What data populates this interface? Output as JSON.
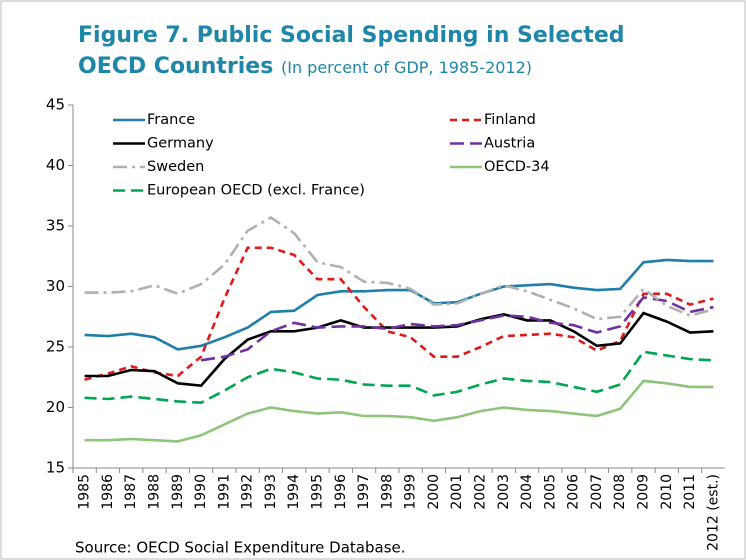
{
  "chart_data": {
    "type": "line",
    "title": "Figure 7. Public Social Spending in Selected OECD Countries",
    "subtitle": "(In percent of GDP, 1985-2012)",
    "source": "Source: OECD Social Expenditure Database.",
    "categories": [
      "1985",
      "1986",
      "1987",
      "1988",
      "1989",
      "1990",
      "1991",
      "1992",
      "1993",
      "1994",
      "1995",
      "1996",
      "1997",
      "1998",
      "1999",
      "2000",
      "2001",
      "2002",
      "2003",
      "2004",
      "2005",
      "2006",
      "2007",
      "2008",
      "2009",
      "2010",
      "2011",
      "2012 (est.)"
    ],
    "ylim": [
      15,
      45
    ],
    "yticks": [
      15,
      20,
      25,
      30,
      35,
      40,
      45
    ],
    "grid": false,
    "series": [
      {
        "name": "France",
        "color": "#1f7fa8",
        "dash": "none",
        "values": [
          26.0,
          25.9,
          26.1,
          25.8,
          24.8,
          25.1,
          25.8,
          26.6,
          27.9,
          28.0,
          29.3,
          29.6,
          29.6,
          29.7,
          29.7,
          28.6,
          28.7,
          29.4,
          30.0,
          30.1,
          30.2,
          29.9,
          29.7,
          29.8,
          32.0,
          32.2,
          32.1,
          32.1
        ]
      },
      {
        "name": "Finland",
        "color": "#e0191a",
        "dash": "7 5",
        "values": [
          22.3,
          22.8,
          23.4,
          22.9,
          22.6,
          24.2,
          29.0,
          33.2,
          33.2,
          32.6,
          30.6,
          30.6,
          28.3,
          26.3,
          25.8,
          24.2,
          24.2,
          25.0,
          25.9,
          26.0,
          26.1,
          25.8,
          24.7,
          25.5,
          29.4,
          29.4,
          28.5,
          29.0
        ]
      },
      {
        "name": "Germany",
        "color": "#000000",
        "dash": "none",
        "values": [
          22.6,
          22.6,
          23.1,
          23.0,
          22.0,
          21.8,
          24.0,
          25.6,
          26.3,
          26.3,
          26.6,
          27.2,
          26.6,
          26.6,
          26.6,
          26.6,
          26.7,
          27.3,
          27.7,
          27.2,
          27.2,
          26.3,
          25.1,
          25.3,
          27.8,
          27.1,
          26.2,
          26.3
        ]
      },
      {
        "name": "Austria",
        "color": "#7030a0",
        "dash": "14 6",
        "values": [
          null,
          null,
          null,
          null,
          null,
          23.9,
          24.2,
          24.8,
          26.3,
          27.0,
          26.6,
          26.7,
          26.7,
          26.5,
          26.9,
          26.7,
          26.8,
          27.2,
          27.6,
          27.5,
          27.0,
          26.8,
          26.2,
          26.7,
          29.1,
          28.8,
          27.9,
          28.3
        ]
      },
      {
        "name": "Sweden",
        "color": "#b0b0b0",
        "dash": "14 5 3 5",
        "values": [
          29.5,
          29.5,
          29.6,
          30.1,
          29.4,
          30.2,
          31.8,
          34.6,
          35.7,
          34.4,
          32.0,
          31.6,
          30.4,
          30.3,
          29.8,
          28.5,
          28.6,
          29.4,
          30.1,
          29.6,
          28.9,
          28.2,
          27.3,
          27.5,
          29.8,
          28.4,
          27.6,
          28.1
        ]
      },
      {
        "name": "OECD-34",
        "color": "#8fc47b",
        "dash": "none",
        "values": [
          17.3,
          17.3,
          17.4,
          17.3,
          17.2,
          17.7,
          18.6,
          19.5,
          20.0,
          19.7,
          19.5,
          19.6,
          19.3,
          19.3,
          19.2,
          18.9,
          19.2,
          19.7,
          20.0,
          19.8,
          19.7,
          19.5,
          19.3,
          19.9,
          22.2,
          22.0,
          21.7,
          21.7
        ]
      },
      {
        "name": "European OECD (excl. France)",
        "color": "#00a651",
        "dash": "12 6",
        "values": [
          20.8,
          20.7,
          20.9,
          20.7,
          20.5,
          20.4,
          21.4,
          22.5,
          23.2,
          22.9,
          22.4,
          22.3,
          21.9,
          21.8,
          21.8,
          21.0,
          21.3,
          21.9,
          22.4,
          22.2,
          22.1,
          21.7,
          21.3,
          21.9,
          24.6,
          24.3,
          24.0,
          23.9
        ]
      }
    ]
  }
}
